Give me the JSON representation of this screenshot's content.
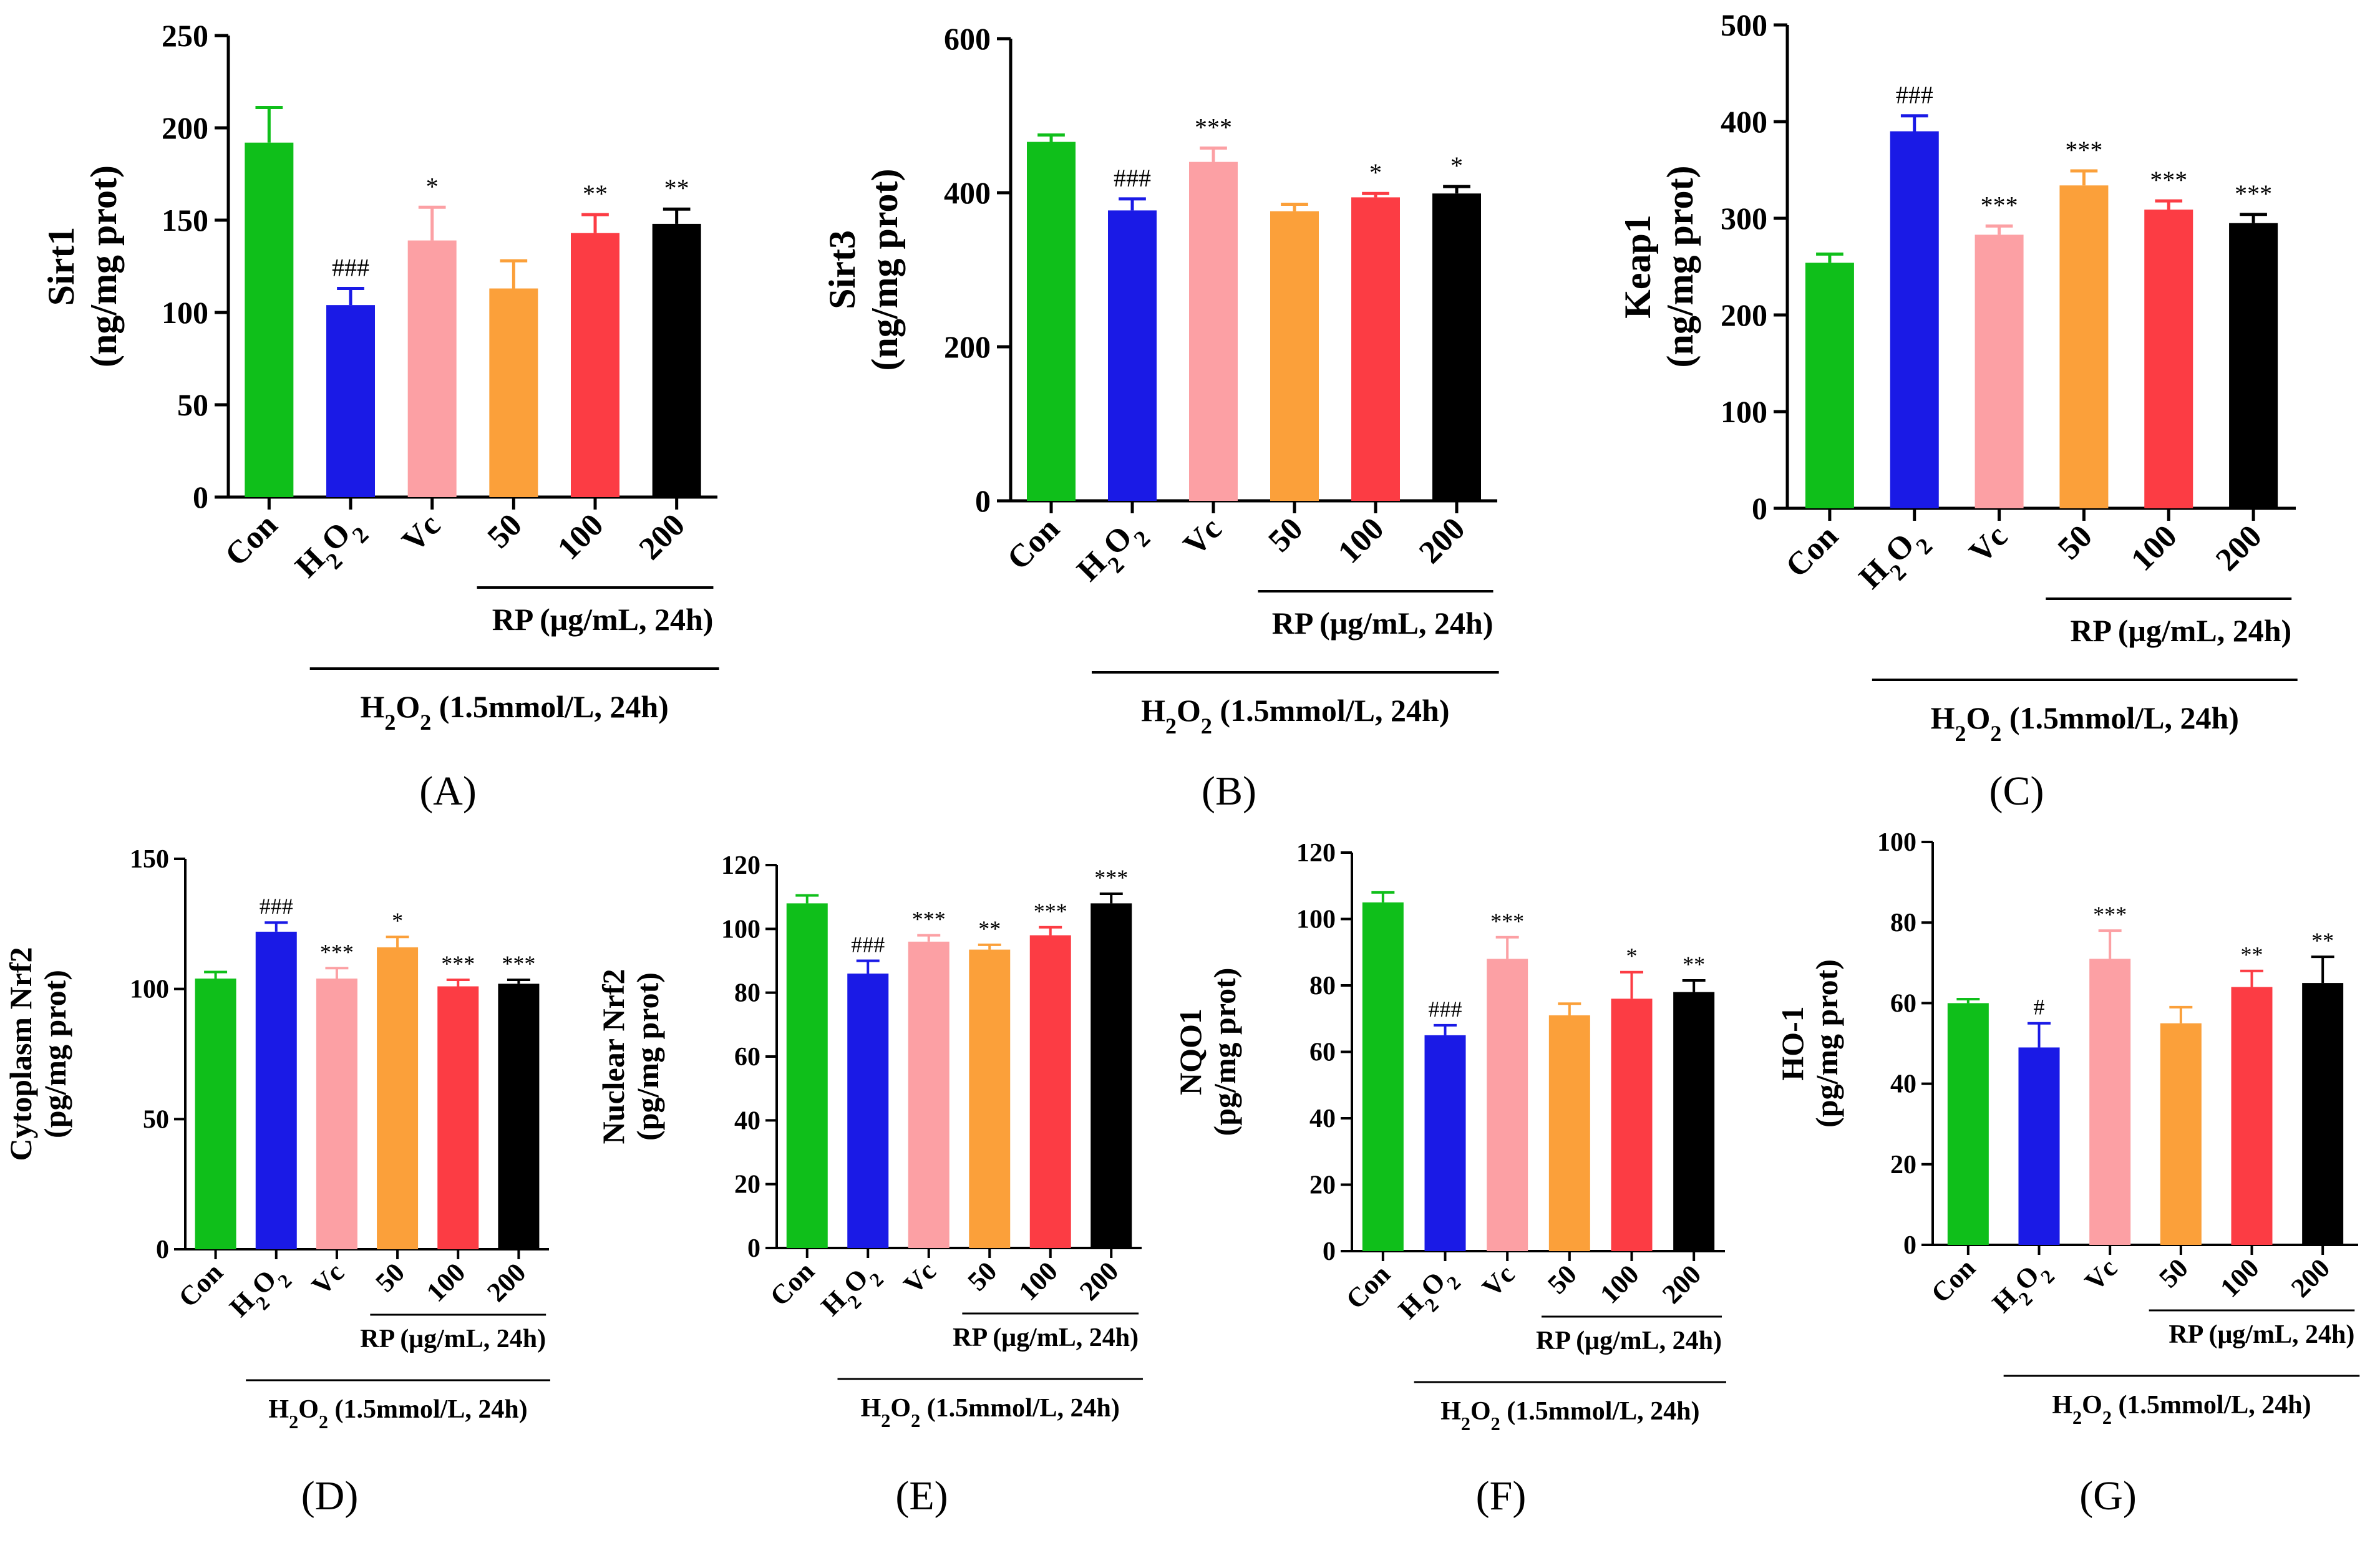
{
  "chart_data": [
    {
      "type": "bar",
      "panel": "(A)",
      "ylabel_line1": "Sirt1",
      "ylabel_line2": "(ng/mg prot)",
      "ylim": [
        0,
        250
      ],
      "yticks": [
        "0",
        "50",
        "100",
        "150",
        "200",
        "250"
      ],
      "categories": [
        "Con",
        "H2O2",
        "Vc",
        "50",
        "100",
        "200"
      ],
      "values": [
        192,
        104,
        139,
        113,
        143,
        148
      ],
      "errors": [
        19,
        9,
        18,
        15,
        10,
        8
      ],
      "significance": [
        "",
        "###",
        "*",
        "",
        "**",
        "**"
      ],
      "colors": [
        "#0fbf1a",
        "#1a1ae6",
        "#fca0a4",
        "#fba03a",
        "#fc3c44",
        "#000000"
      ],
      "group_label_rp": "RP (μg/mL, 24h)",
      "group_label_h2o2": "H2O2 (1.5mmol/L, 24h)"
    },
    {
      "type": "bar",
      "panel": "(B)",
      "ylabel_line1": "Sirt3",
      "ylabel_line2": "(ng/mg prot)",
      "ylim": [
        0,
        600
      ],
      "yticks": [
        "0",
        "200",
        "400",
        "600"
      ],
      "categories": [
        "Con",
        "H2O2",
        "Vc",
        "50",
        "100",
        "200"
      ],
      "values": [
        466,
        377,
        440,
        376,
        394,
        399
      ],
      "errors": [
        9,
        15,
        18,
        9,
        5,
        9
      ],
      "significance": [
        "",
        "###",
        "***",
        "",
        "*",
        "*"
      ],
      "colors": [
        "#0fbf1a",
        "#1a1ae6",
        "#fca0a4",
        "#fba03a",
        "#fc3c44",
        "#000000"
      ],
      "group_label_rp": "RP (μg/mL, 24h)",
      "group_label_h2o2": "H2O2 (1.5mmol/L, 24h)"
    },
    {
      "type": "bar",
      "panel": "(C)",
      "ylabel_line1": "Keap1",
      "ylabel_line2": "(ng/mg prot)",
      "ylim": [
        0,
        500
      ],
      "yticks": [
        "0",
        "100",
        "200",
        "300",
        "400",
        "500"
      ],
      "categories": [
        "Con",
        "H2O2",
        "Vc",
        "50",
        "100",
        "200"
      ],
      "values": [
        254,
        390,
        283,
        334,
        309,
        295
      ],
      "errors": [
        9,
        16,
        9,
        15,
        9,
        9
      ],
      "significance": [
        "",
        "###",
        "***",
        "***",
        "***",
        "***"
      ],
      "colors": [
        "#0fbf1a",
        "#1a1ae6",
        "#fca0a4",
        "#fba03a",
        "#fc3c44",
        "#000000"
      ],
      "group_label_rp": "RP (μg/mL, 24h)",
      "group_label_h2o2": "H2O2 (1.5mmol/L, 24h)"
    },
    {
      "type": "bar",
      "panel": "(D)",
      "ylabel_line1": "Cytoplasm Nrf2",
      "ylabel_line2": "(pg/mg prot)",
      "ylim": [
        0,
        150
      ],
      "yticks": [
        "0",
        "50",
        "100",
        "150"
      ],
      "categories": [
        "Con",
        "H2O2",
        "Vc",
        "50",
        "100",
        "200"
      ],
      "values": [
        104,
        122,
        104,
        116,
        101,
        102
      ],
      "errors": [
        2.5,
        3.5,
        4,
        4,
        2.5,
        1.5
      ],
      "significance": [
        "",
        "###",
        "***",
        "*",
        "***",
        "***"
      ],
      "colors": [
        "#0fbf1a",
        "#1a1ae6",
        "#fca0a4",
        "#fba03a",
        "#fc3c44",
        "#000000"
      ],
      "group_label_rp": "RP (μg/mL, 24h)",
      "group_label_h2o2": "H2O2 (1.5mmol/L, 24h)"
    },
    {
      "type": "bar",
      "panel": "(E)",
      "ylabel_line1": "Nuclear Nrf2",
      "ylabel_line2": "(pg/mg prot)",
      "ylim": [
        0,
        120
      ],
      "yticks": [
        "0",
        "20",
        "40",
        "60",
        "80",
        "100",
        "120"
      ],
      "categories": [
        "Con",
        "H2O2",
        "Vc",
        "50",
        "100",
        "200"
      ],
      "values": [
        108,
        86,
        96,
        93.5,
        98,
        108
      ],
      "errors": [
        2.5,
        4,
        2,
        1.5,
        2.5,
        3
      ],
      "significance": [
        "",
        "###",
        "***",
        "**",
        "***",
        "***"
      ],
      "colors": [
        "#0fbf1a",
        "#1a1ae6",
        "#fca0a4",
        "#fba03a",
        "#fc3c44",
        "#000000"
      ],
      "group_label_rp": "RP (μg/mL, 24h)",
      "group_label_h2o2": "H2O2 (1.5mmol/L, 24h)"
    },
    {
      "type": "bar",
      "panel": "(F)",
      "ylabel_line1": "NQO1",
      "ylabel_line2": "(pg/mg prot)",
      "ylim": [
        0,
        120
      ],
      "yticks": [
        "0",
        "20",
        "40",
        "60",
        "80",
        "100",
        "120"
      ],
      "categories": [
        "Con",
        "H2O2",
        "Vc",
        "50",
        "100",
        "200"
      ],
      "values": [
        105,
        65,
        88,
        71,
        76,
        78
      ],
      "errors": [
        3,
        3,
        6.5,
        3.5,
        8,
        3.5
      ],
      "significance": [
        "",
        "###",
        "***",
        "",
        "*",
        "**"
      ],
      "colors": [
        "#0fbf1a",
        "#1a1ae6",
        "#fca0a4",
        "#fba03a",
        "#fc3c44",
        "#000000"
      ],
      "group_label_rp": "RP (μg/mL, 24h)",
      "group_label_h2o2": "H2O2 (1.5mmol/L, 24h)"
    },
    {
      "type": "bar",
      "panel": "(G)",
      "ylabel_line1": "HO-1",
      "ylabel_line2": "(pg/mg prot)",
      "ylim": [
        0,
        100
      ],
      "yticks": [
        "0",
        "20",
        "40",
        "60",
        "80",
        "100"
      ],
      "categories": [
        "Con",
        "H2O2",
        "Vc",
        "50",
        "100",
        "200"
      ],
      "values": [
        60,
        49,
        71,
        55,
        64,
        65
      ],
      "errors": [
        1,
        6,
        7,
        4,
        4,
        6.5
      ],
      "significance": [
        "",
        "#",
        "***",
        "",
        "**",
        "**"
      ],
      "colors": [
        "#0fbf1a",
        "#1a1ae6",
        "#fca0a4",
        "#fba03a",
        "#fc3c44",
        "#000000"
      ],
      "group_label_rp": "RP (μg/mL, 24h)",
      "group_label_h2o2": "H2O2 (1.5mmol/L, 24h)"
    }
  ]
}
